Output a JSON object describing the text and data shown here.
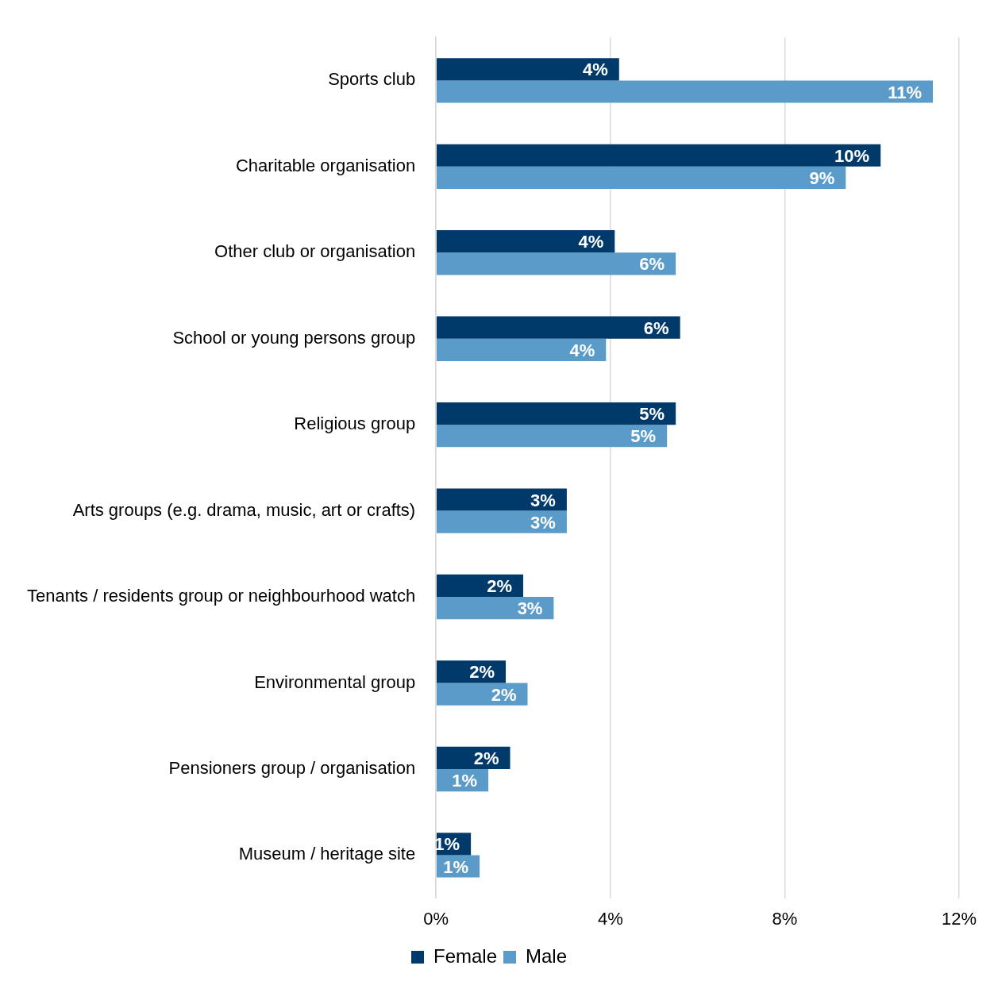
{
  "chart_data": {
    "type": "bar",
    "orientation": "horizontal",
    "categories": [
      "Sports club",
      "Charitable organisation",
      "Other club or organisation",
      "School or young persons group",
      "Religious group",
      "Arts groups (e.g. drama, music, art or crafts)",
      "Tenants / residents group or neighbourhood watch",
      "Environmental group",
      "Pensioners group / organisation",
      "Museum / heritage site"
    ],
    "series": [
      {
        "name": "Female",
        "color": "#003a6b",
        "values": [
          4.2,
          10.2,
          4.1,
          5.6,
          5.5,
          3.0,
          2.0,
          1.6,
          1.7,
          0.8
        ],
        "value_labels": [
          "4%",
          "10%",
          "4%",
          "6%",
          "5%",
          "3%",
          "2%",
          "2%",
          "2%",
          "1%"
        ]
      },
      {
        "name": "Male",
        "color": "#5b9bc9",
        "values": [
          11.4,
          9.4,
          5.5,
          3.9,
          5.3,
          3.0,
          2.7,
          2.1,
          1.2,
          1.0
        ],
        "value_labels": [
          "11%",
          "9%",
          "6%",
          "4%",
          "5%",
          "3%",
          "3%",
          "2%",
          "1%",
          "1%"
        ]
      }
    ],
    "xlim": [
      0,
      12
    ],
    "xticks": [
      {
        "value": 0,
        "label": "0%"
      },
      {
        "value": 4,
        "label": "4%"
      },
      {
        "value": 8,
        "label": "8%"
      },
      {
        "value": 12,
        "label": "12%"
      }
    ],
    "grid": "x",
    "legend": "bottom"
  }
}
